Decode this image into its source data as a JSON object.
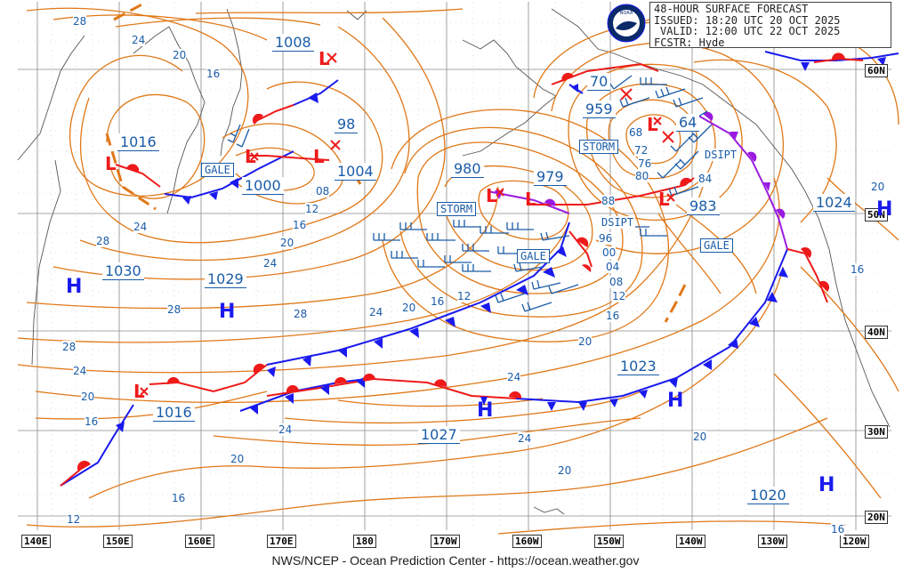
{
  "header": {
    "title": "48-HOUR SURFACE FORECAST",
    "issued_label": "ISSUED:",
    "issued": "18:20 UTC 20 OCT 2025",
    "valid_label": "VALID:",
    "valid": "12:00 UTC 22 OCT 2025",
    "fcstr_label": "FCSTR:",
    "forecaster": "Hyde"
  },
  "footer": "NWS/NCEP - Ocean Prediction Center - https://ocean.weather.gov",
  "lon_labels": [
    "140E",
    "150E",
    "160E",
    "170E",
    "180",
    "170W",
    "160W",
    "150W",
    "140W",
    "130W",
    "120W"
  ],
  "lat_labels": [
    "60N",
    "50N",
    "40N",
    "30N",
    "20N"
  ],
  "pressure_centers": {
    "lows": [
      "1008",
      "98",
      "1016",
      "1000",
      "1004",
      "980",
      "979",
      "70",
      "959",
      "64",
      "983"
    ],
    "highs": [
      "1030",
      "1029",
      "1016",
      "1027",
      "1023",
      "1024",
      "1020"
    ]
  },
  "isobar_labels": [
    "28",
    "24",
    "20",
    "16",
    "12",
    "08",
    "04",
    "00",
    "96",
    "88",
    "84",
    "80",
    "76",
    "72",
    "68"
  ],
  "warnings": [
    "GALE",
    "STORM",
    "GALE",
    "STORM",
    "GALE",
    "GALE"
  ],
  "dissipating": [
    "DSIPT",
    "DSIPT"
  ],
  "symbols": {
    "high": "H",
    "low": "L"
  },
  "colors": {
    "isobar": "#e07818",
    "cold_front": "#1a1aee",
    "warm_front": "#ee1a1a",
    "occluded_front": "#9a1ae0",
    "label_text": "#1a5ca8",
    "coast": "#555555"
  }
}
